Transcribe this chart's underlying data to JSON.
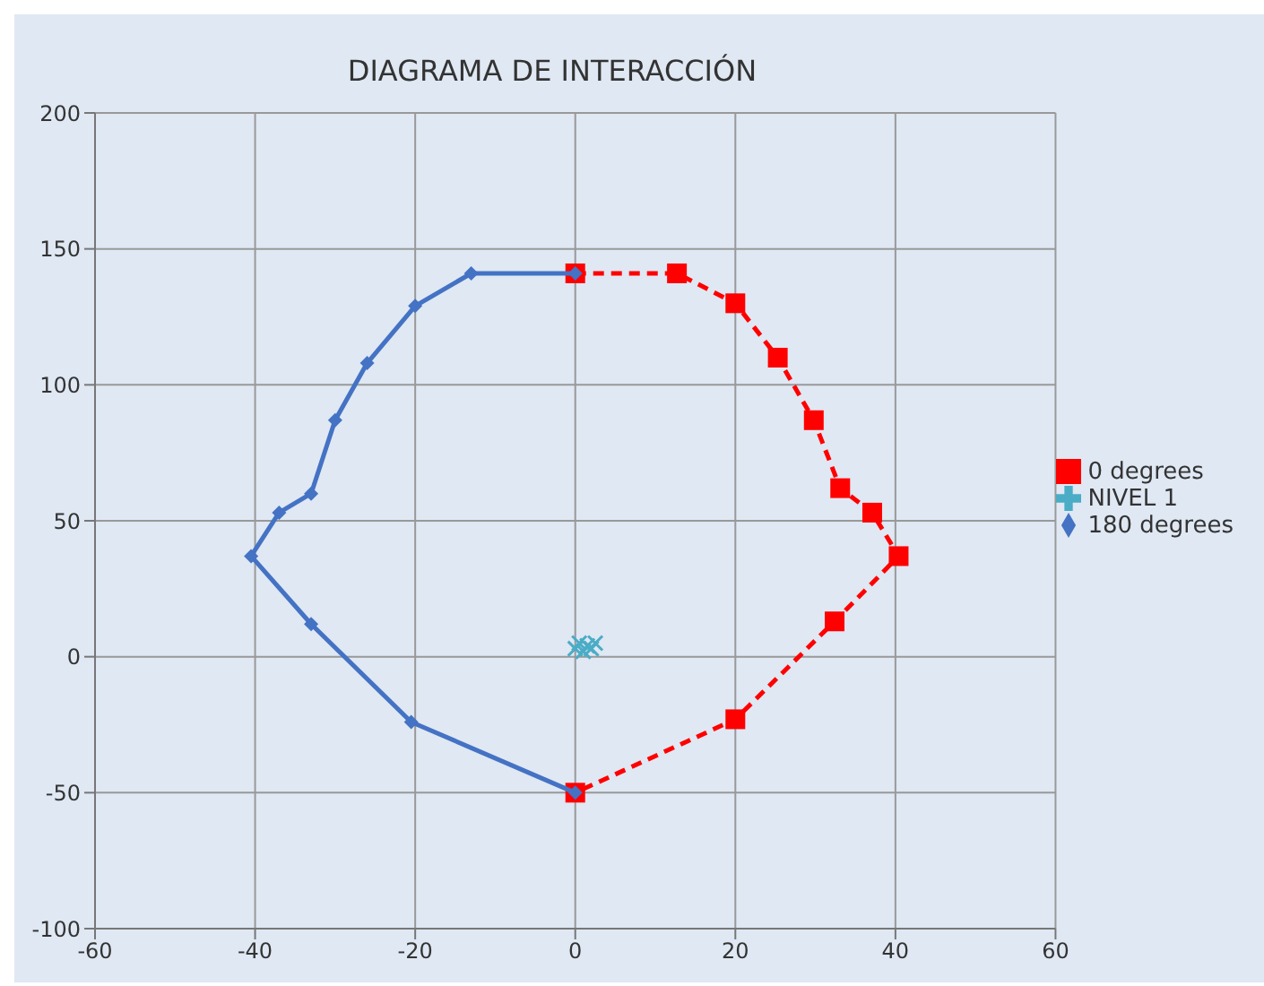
{
  "chart_data": {
    "type": "line",
    "title": "DIAGRAMA DE INTERACCIÓN",
    "xlim": [
      -60,
      60
    ],
    "xticks": [
      -60,
      -40,
      -20,
      0,
      20,
      40,
      60
    ],
    "ylim": [
      -100,
      200
    ],
    "yticks": [
      -100,
      -50,
      0,
      50,
      100,
      150,
      200
    ],
    "grid": true,
    "legend": "right",
    "series": [
      {
        "name": "0 degrees",
        "color": "#ff0000",
        "marker": "square",
        "line_style": "dashed",
        "x": [
          0,
          12.7,
          20,
          25.3,
          29.8,
          33.1,
          37.1,
          40.4,
          32.4,
          20,
          0
        ],
        "values": [
          141,
          141,
          130,
          110,
          87,
          62,
          53,
          37,
          13,
          -23,
          -50
        ]
      },
      {
        "name": "NIVEL 1",
        "type": "scatter",
        "color": "#4bacc6",
        "marker": "cross",
        "x": [
          0,
          0.5,
          1,
          1.5,
          2,
          2.5
        ],
        "values": [
          3,
          5,
          2,
          4,
          3,
          5
        ]
      },
      {
        "name": "180 degrees",
        "color": "#4472c4",
        "marker": "diamond",
        "line_style": "solid",
        "x": [
          0,
          -13,
          -20,
          -26,
          -30,
          -33,
          -37,
          -40.5,
          -33,
          -20.5,
          0
        ],
        "values": [
          141,
          141,
          129,
          108,
          87,
          60,
          53,
          37,
          12,
          -24,
          -50
        ]
      }
    ]
  }
}
